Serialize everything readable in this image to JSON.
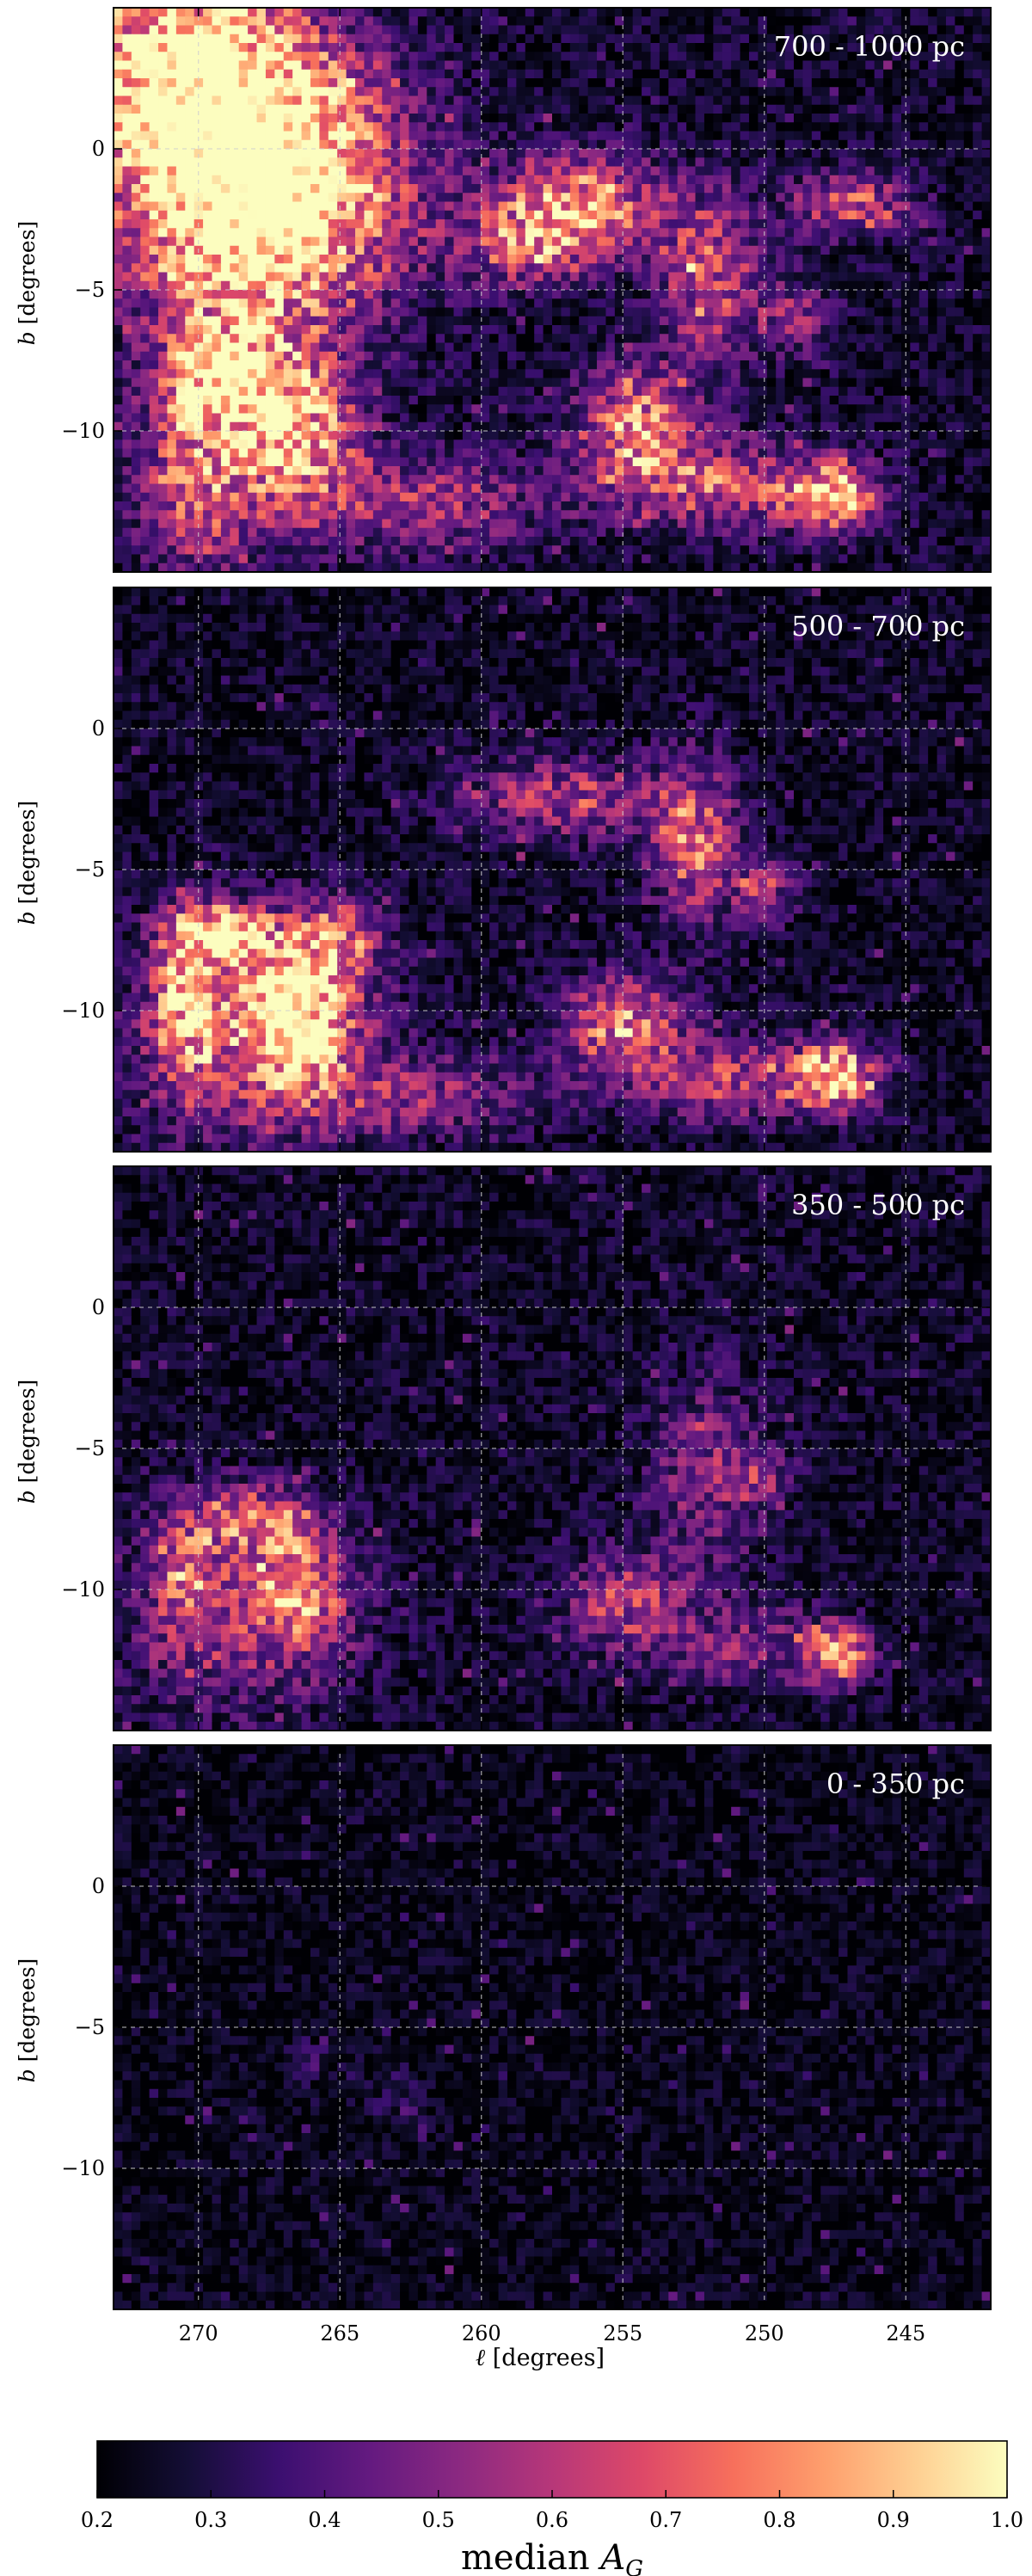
{
  "chart_data": {
    "type": "heatmap",
    "colormap": "magma",
    "x_axis": {
      "label_symbol": "ℓ",
      "label_unit": "[degrees]",
      "range": [
        273,
        242
      ],
      "ticks": [
        270,
        265,
        260,
        255,
        250,
        245
      ],
      "tick_labels": [
        "270",
        "265",
        "260",
        "255",
        "250",
        "245"
      ]
    },
    "y_axis": {
      "label_symbol": "b",
      "label_unit": "[degrees]",
      "range": [
        -15,
        5
      ],
      "ticks": [
        0,
        -5,
        -10
      ],
      "tick_labels": [
        "0",
        "−5",
        "−10"
      ]
    },
    "grid": true,
    "colorbar": {
      "label_text": "median ",
      "label_symbol": "A",
      "label_subscript": "G",
      "range": [
        0.2,
        1.0
      ],
      "ticks": [
        0.2,
        0.3,
        0.4,
        0.5,
        0.6,
        0.7,
        0.8,
        0.9,
        1.0
      ],
      "tick_labels": [
        "0.2",
        "0.3",
        "0.4",
        "0.5",
        "0.6",
        "0.7",
        "0.8",
        "0.9",
        "1.0"
      ],
      "placement": "bottom"
    },
    "panels": [
      {
        "label": "700 - 1000 pc",
        "background_level": 0.26,
        "features": [
          {
            "l": 270.5,
            "b": 2.5,
            "sl": 3.2,
            "sb": 2.8,
            "amp": 0.85
          },
          {
            "l": 268.0,
            "b": -0.5,
            "sl": 2.5,
            "sb": 2.5,
            "amp": 0.55
          },
          {
            "l": 268.5,
            "b": -3.5,
            "sl": 3.0,
            "sb": 2.2,
            "amp": 0.5
          },
          {
            "l": 269.0,
            "b": -8.0,
            "sl": 1.5,
            "sb": 1.3,
            "amp": 0.65
          },
          {
            "l": 266.5,
            "b": -10.0,
            "sl": 1.5,
            "sb": 2.0,
            "amp": 0.6
          },
          {
            "l": 270.0,
            "b": -11.5,
            "sl": 1.5,
            "sb": 2.5,
            "amp": 0.45
          },
          {
            "l": 265.0,
            "b": -1.5,
            "sl": 3.0,
            "sb": 3.0,
            "amp": 0.25
          },
          {
            "l": 256.5,
            "b": -2.0,
            "sl": 2.0,
            "sb": 1.2,
            "amp": 0.55
          },
          {
            "l": 258.5,
            "b": -3.5,
            "sl": 1.5,
            "sb": 1.0,
            "amp": 0.35
          },
          {
            "l": 252.0,
            "b": -4.5,
            "sl": 1.2,
            "sb": 2.0,
            "amp": 0.4
          },
          {
            "l": 254.5,
            "b": -10.0,
            "sl": 1.5,
            "sb": 1.5,
            "amp": 0.55
          },
          {
            "l": 247.5,
            "b": -12.3,
            "sl": 1.0,
            "sb": 0.8,
            "amp": 0.6
          },
          {
            "l": 251.0,
            "b": -12.0,
            "sl": 2.5,
            "sb": 1.0,
            "amp": 0.4
          },
          {
            "l": 247.0,
            "b": -2.0,
            "sl": 1.5,
            "sb": 0.8,
            "amp": 0.4
          },
          {
            "l": 262.0,
            "b": -12.5,
            "sl": 3.0,
            "sb": 1.2,
            "amp": 0.3
          },
          {
            "l": 249.0,
            "b": -6.0,
            "sl": 1.0,
            "sb": 1.0,
            "amp": 0.25
          }
        ]
      },
      {
        "label": "500 - 700 pc",
        "background_level": 0.25,
        "features": [
          {
            "l": 269.0,
            "b": -7.3,
            "sl": 1.2,
            "sb": 0.7,
            "amp": 0.7
          },
          {
            "l": 266.5,
            "b": -10.0,
            "sl": 1.3,
            "sb": 1.8,
            "amp": 0.65
          },
          {
            "l": 270.5,
            "b": -9.5,
            "sl": 0.8,
            "sb": 2.0,
            "amp": 0.5
          },
          {
            "l": 268.0,
            "b": -11.0,
            "sl": 3.0,
            "sb": 2.5,
            "amp": 0.35
          },
          {
            "l": 265.0,
            "b": -7.5,
            "sl": 1.0,
            "sb": 1.0,
            "amp": 0.4
          },
          {
            "l": 257.0,
            "b": -2.5,
            "sl": 2.5,
            "sb": 1.0,
            "amp": 0.35
          },
          {
            "l": 252.5,
            "b": -4.0,
            "sl": 1.0,
            "sb": 2.0,
            "amp": 0.45
          },
          {
            "l": 255.0,
            "b": -10.5,
            "sl": 1.5,
            "sb": 1.2,
            "amp": 0.5
          },
          {
            "l": 247.5,
            "b": -12.3,
            "sl": 1.0,
            "sb": 0.8,
            "amp": 0.65
          },
          {
            "l": 251.0,
            "b": -12.5,
            "sl": 2.5,
            "sb": 1.0,
            "amp": 0.35
          },
          {
            "l": 262.0,
            "b": -13.0,
            "sl": 3.0,
            "sb": 1.0,
            "amp": 0.25
          },
          {
            "l": 250.0,
            "b": -5.8,
            "sl": 0.8,
            "sb": 0.8,
            "amp": 0.3
          }
        ]
      },
      {
        "label": "350 - 500 pc",
        "background_level": 0.25,
        "features": [
          {
            "l": 268.0,
            "b": -7.5,
            "sl": 1.5,
            "sb": 0.8,
            "amp": 0.4
          },
          {
            "l": 266.5,
            "b": -10.0,
            "sl": 1.2,
            "sb": 1.5,
            "amp": 0.4
          },
          {
            "l": 270.5,
            "b": -9.5,
            "sl": 0.8,
            "sb": 1.5,
            "amp": 0.35
          },
          {
            "l": 268.5,
            "b": -11.0,
            "sl": 3.0,
            "sb": 2.5,
            "amp": 0.25
          },
          {
            "l": 255.0,
            "b": -10.5,
            "sl": 1.5,
            "sb": 1.2,
            "amp": 0.35
          },
          {
            "l": 252.0,
            "b": -6.0,
            "sl": 1.5,
            "sb": 2.5,
            "amp": 0.25
          },
          {
            "l": 247.5,
            "b": -12.3,
            "sl": 0.8,
            "sb": 0.7,
            "amp": 0.55
          },
          {
            "l": 250.5,
            "b": -12.0,
            "sl": 2.0,
            "sb": 1.0,
            "amp": 0.25
          },
          {
            "l": 250.0,
            "b": -6.0,
            "sl": 0.8,
            "sb": 0.6,
            "amp": 0.2
          }
        ]
      },
      {
        "label": "0 - 350 pc",
        "background_level": 0.23,
        "features": [
          {
            "l": 263.0,
            "b": -7.5,
            "sl": 0.6,
            "sb": 0.6,
            "amp": 0.15
          },
          {
            "l": 266.0,
            "b": -6.3,
            "sl": 0.6,
            "sb": 0.6,
            "amp": 0.12
          }
        ]
      }
    ]
  }
}
